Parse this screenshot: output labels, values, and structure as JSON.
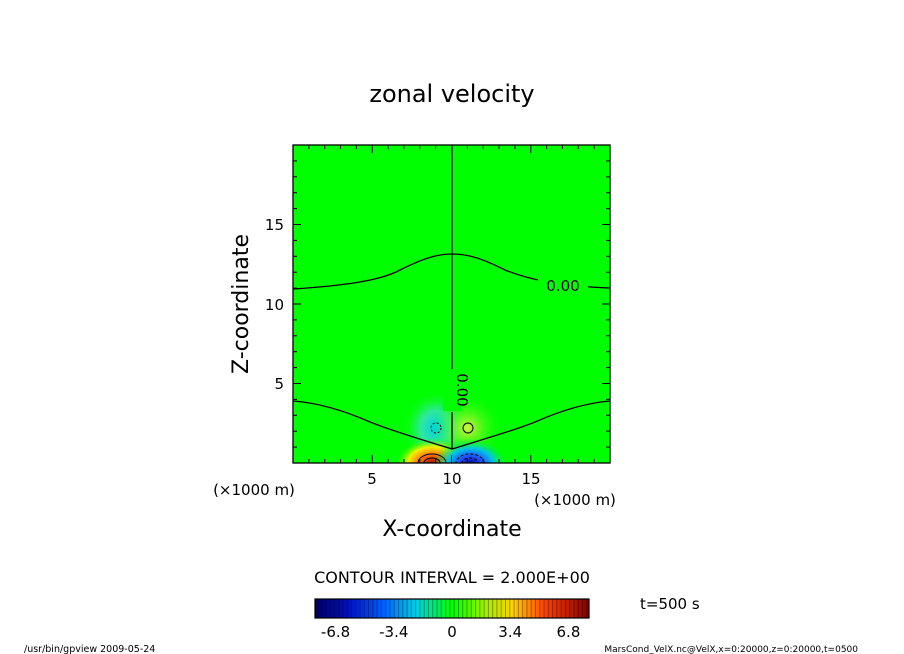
{
  "chart_data": {
    "type": "heatmap",
    "title": "zonal velocity",
    "xlabel": "X-coordinate",
    "ylabel": "Z-coordinate",
    "x_unit": "(×1000 m)",
    "z_unit": "(×1000 m)",
    "xlim": [
      0,
      20
    ],
    "zlim": [
      0,
      20
    ],
    "x_ticks": [
      "5",
      "10",
      "15"
    ],
    "z_ticks": [
      "5",
      "10",
      "15"
    ],
    "contour_labels": [
      "0.00",
      "0.00"
    ],
    "contour_interval_text": "CONTOUR INTERVAL = 2.000E+00",
    "time_label": "t=500 s",
    "colorbar": {
      "min": -8,
      "max": 8,
      "tick_labels": [
        "-6.8",
        "-3.4",
        "0",
        "3.4",
        "6.8"
      ],
      "tick_values": [
        -6.8,
        -3.4,
        0,
        3.4,
        6.8
      ]
    },
    "background_value": 0,
    "features": [
      {
        "name": "negative-core",
        "x": 11.2,
        "z": 0.2,
        "value": -7.5
      },
      {
        "name": "positive-core",
        "x": 8.8,
        "z": 0.2,
        "value": 6.5
      },
      {
        "name": "weak-negative",
        "x": 9.0,
        "z": 2.2,
        "value": -2.0
      },
      {
        "name": "weak-positive",
        "x": 11.0,
        "z": 2.2,
        "value": 1.2
      }
    ]
  },
  "footer": {
    "left": "/usr/bin/gpview  2009-05-24",
    "right": "MarsCond_VelX.nc@VelX,x=0:20000,z=0:20000,t=0500"
  },
  "colors": {
    "zero": "#00ff00",
    "negative_max": "#000080",
    "positive_max": "#800000"
  }
}
